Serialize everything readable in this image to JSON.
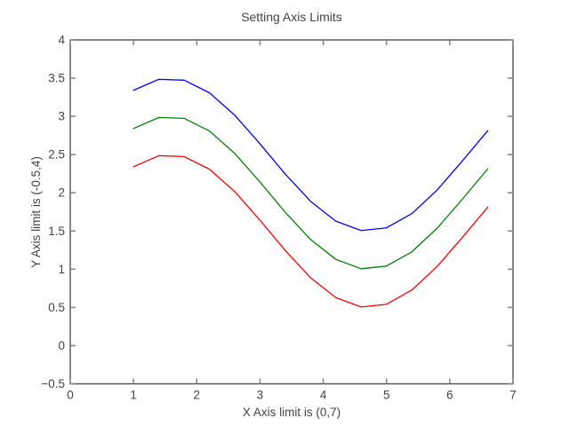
{
  "figure": {
    "background": "#ffffff"
  },
  "chart_data": {
    "type": "line",
    "title": "Setting Axis Limits",
    "xlabel": "X Axis limit is (0,7)",
    "ylabel": "Y Axis limit is (-0.5,4)",
    "xlim": [
      0,
      7
    ],
    "ylim": [
      -0.5,
      4
    ],
    "grid": false,
    "legend": "none",
    "box": true,
    "x": [
      1.0,
      1.4,
      1.8,
      2.2,
      2.6,
      3.0,
      3.4,
      3.8,
      4.2,
      4.6,
      5.0,
      5.4,
      5.8,
      6.2,
      6.6
    ],
    "series": [
      {
        "name": "blue-line",
        "color": "#0000ff",
        "values": [
          3.341,
          3.485,
          3.474,
          3.309,
          3.016,
          2.641,
          2.244,
          1.888,
          1.628,
          1.506,
          1.541,
          1.727,
          2.035,
          2.417,
          2.812
        ]
      },
      {
        "name": "green-line",
        "color": "#008000",
        "values": [
          2.841,
          2.985,
          2.974,
          2.809,
          2.516,
          2.141,
          1.744,
          1.388,
          1.128,
          1.006,
          1.041,
          1.227,
          1.535,
          1.917,
          2.312
        ]
      },
      {
        "name": "red-line",
        "color": "#ff0000",
        "values": [
          2.341,
          2.485,
          2.474,
          2.309,
          2.016,
          1.641,
          1.244,
          0.888,
          0.628,
          0.506,
          0.541,
          0.727,
          1.035,
          1.417,
          1.812
        ]
      }
    ],
    "x_ticks": {
      "values": [
        0,
        1,
        2,
        3,
        4,
        5,
        6,
        7
      ],
      "labels": [
        "0",
        "1",
        "2",
        "3",
        "4",
        "5",
        "6",
        "7"
      ]
    },
    "y_ticks": {
      "values": [
        -0.5,
        0,
        0.5,
        1,
        1.5,
        2,
        2.5,
        3,
        3.5,
        4
      ],
      "labels": [
        "−0.5",
        "0",
        "0.5",
        "1",
        "1.5",
        "2",
        "2.5",
        "3",
        "3.5",
        "4"
      ]
    },
    "colors": {
      "axis_line": "#444444",
      "tick_mark": "#888888",
      "text": "#444444",
      "plot_background": "#ffffff"
    }
  }
}
